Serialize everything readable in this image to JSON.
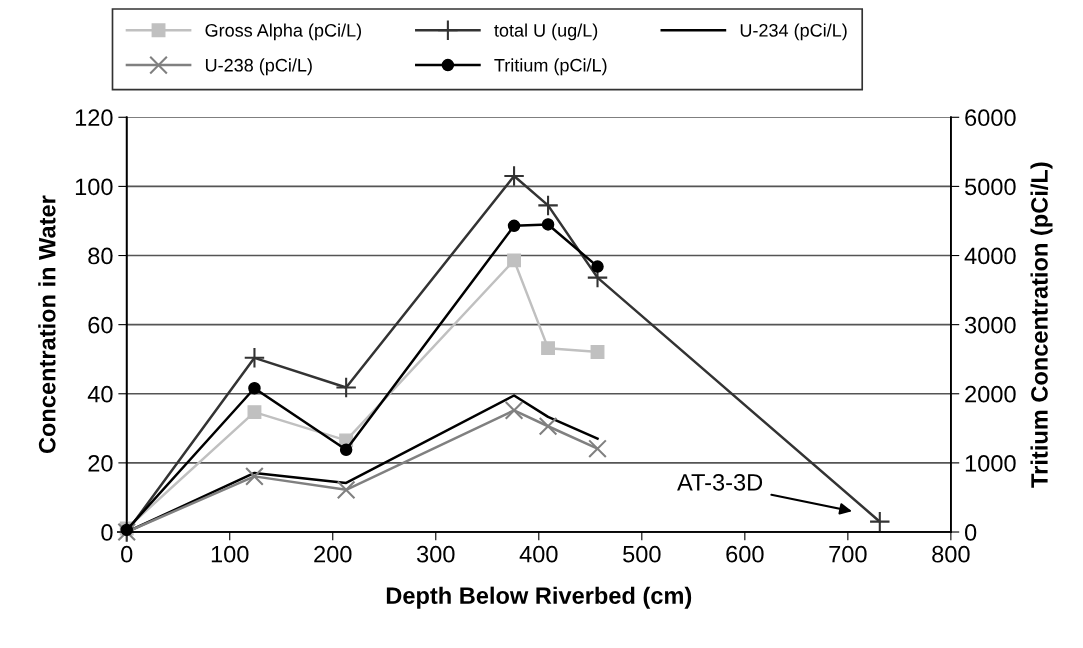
{
  "chart_data": {
    "type": "line",
    "xlabel": "Depth Below Riverbed (cm)",
    "ylabel": "Concentration in Water",
    "y2label": "Tritium Concentration (pCi/L)",
    "series": [
      {
        "name": "Gross Alpha (pCi/L)",
        "color": "#c0c0c0",
        "marker": "square",
        "x": [
          0,
          124,
          213,
          376,
          409,
          457
        ],
        "values": [
          1,
          34.7,
          26.5,
          78.6,
          53.2,
          52.1
        ]
      },
      {
        "name": "total U (ug/L)",
        "color": "#333333",
        "marker": "plus",
        "x": [
          0,
          124,
          213,
          376,
          409,
          457,
          731
        ],
        "values": [
          0,
          50.4,
          41.8,
          103,
          94.5,
          73.6,
          3
        ]
      },
      {
        "name": "U-234 (pCi/L)",
        "color": "#000000",
        "marker": "none",
        "x": [
          0,
          124,
          213,
          376,
          409,
          457
        ],
        "values": [
          0,
          17.1,
          14.2,
          39.5,
          33.3,
          27
        ]
      },
      {
        "name": "U-238 (pCi/L)",
        "color": "#808080",
        "marker": "cross",
        "x": [
          0,
          124,
          213,
          376,
          409,
          457
        ],
        "values": [
          0,
          16.1,
          12.2,
          35.2,
          30.6,
          24.1
        ]
      },
      {
        "name": "Tritium (pCi/L)",
        "color": "#000000",
        "marker": "circle",
        "axis": "y2",
        "x": [
          0,
          124,
          213,
          376,
          409,
          457
        ],
        "values": [
          30,
          2080,
          1190,
          4430,
          4450,
          3840
        ]
      }
    ],
    "xlim": [
      0,
      800
    ],
    "xticks": [
      0,
      100,
      200,
      300,
      400,
      500,
      600,
      700,
      800
    ],
    "ylim": [
      0,
      120
    ],
    "yticks": [
      0,
      20,
      40,
      60,
      80,
      100,
      120
    ],
    "y2lim": [
      0,
      6000
    ],
    "y2ticks": [
      0,
      1000,
      2000,
      3000,
      4000,
      5000,
      6000
    ],
    "annotations": [
      "AT-3-3D"
    ],
    "grid": "y",
    "legend": "top",
    "line_style": "solid"
  }
}
